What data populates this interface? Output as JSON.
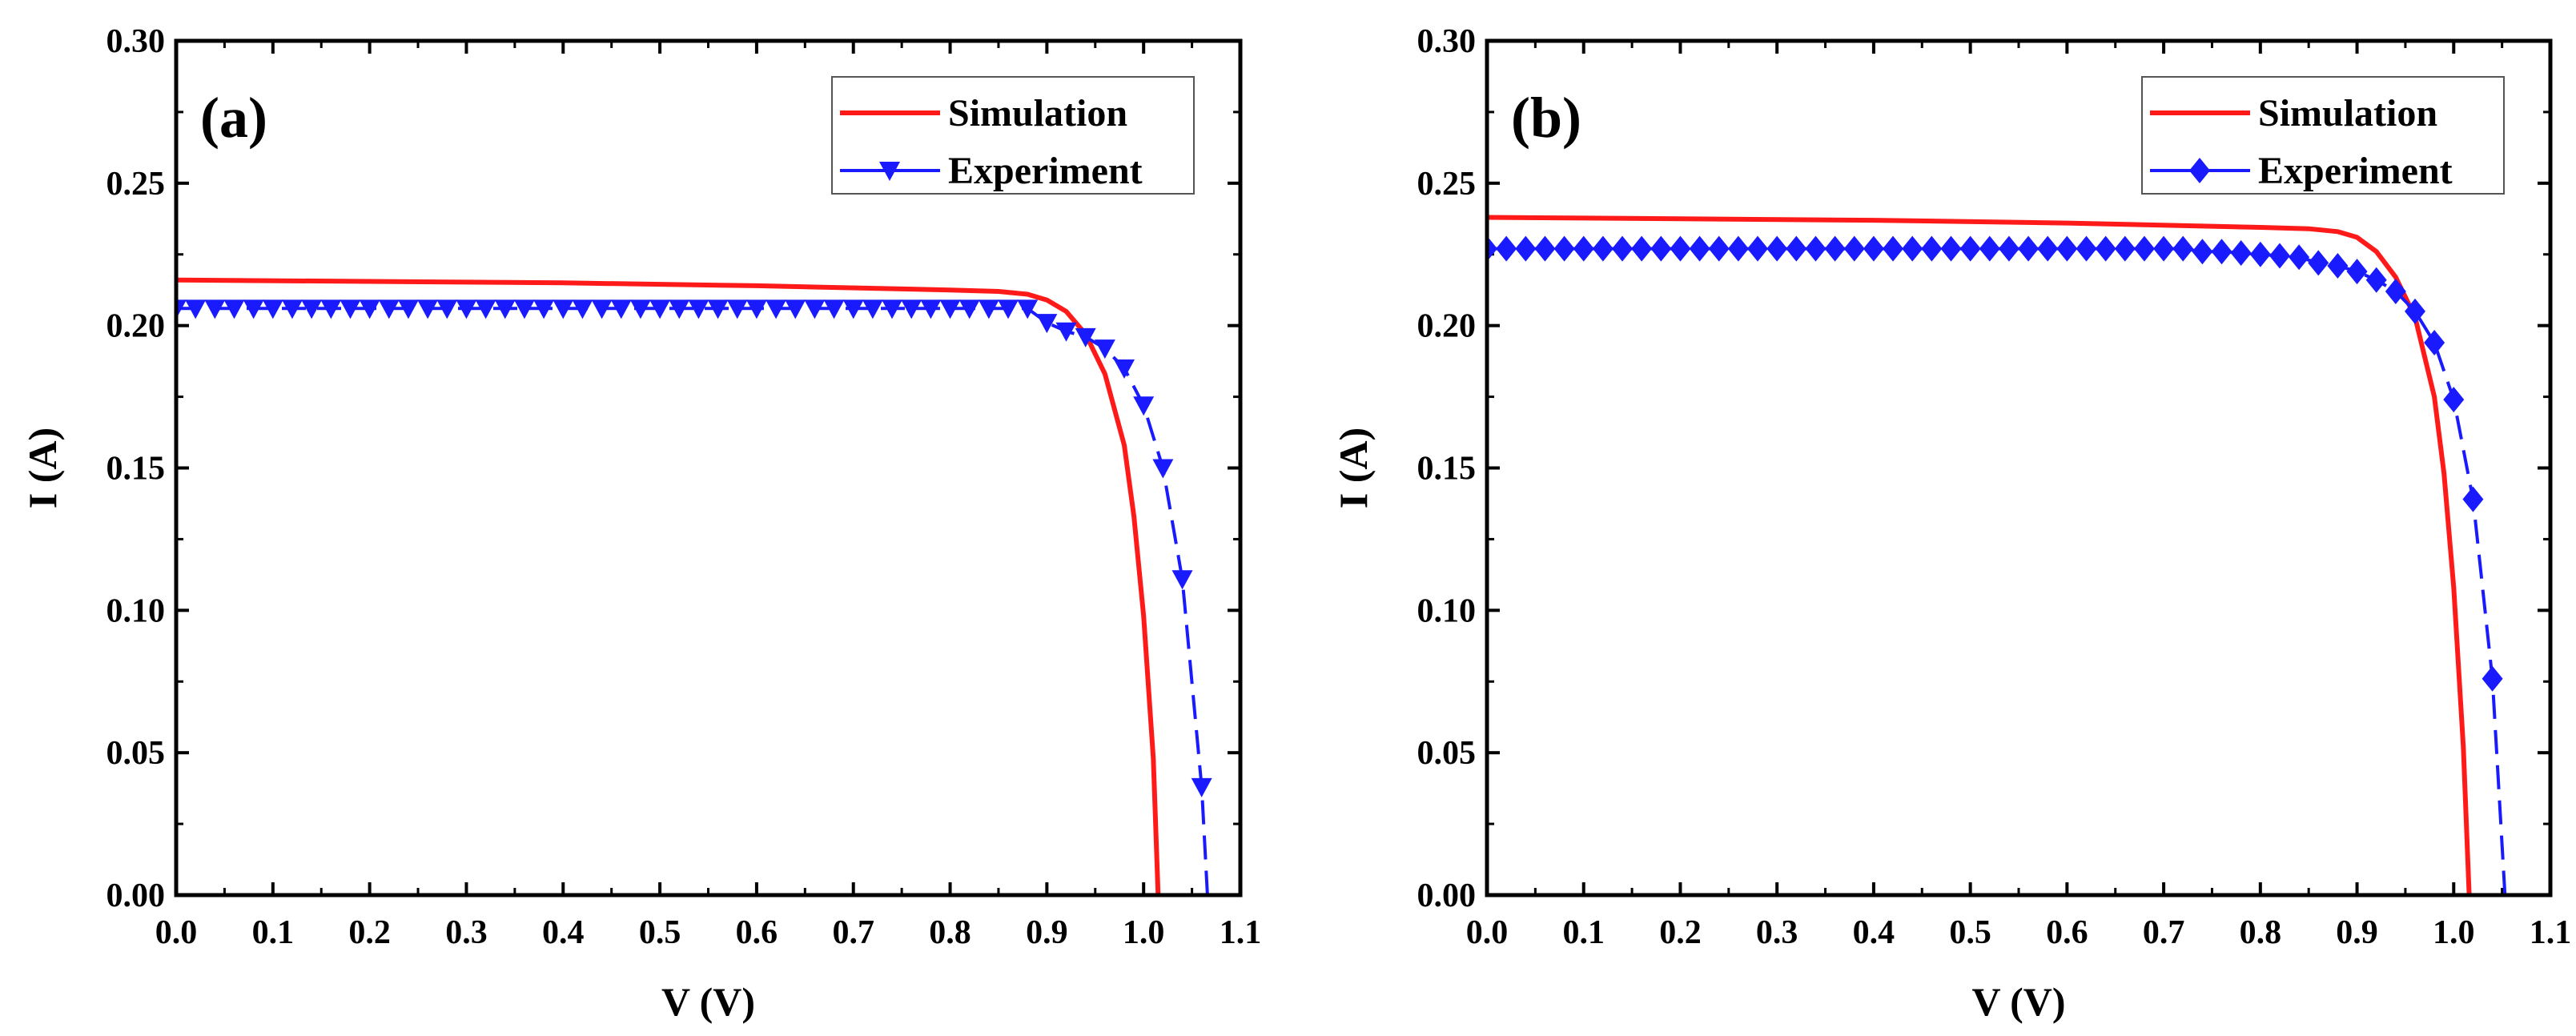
{
  "colors": {
    "simulation": "#ff1a1a",
    "experiment": "#1a1aff",
    "axis": "#000000"
  },
  "chart_data": [
    {
      "type": "line",
      "panel_label": "(a)",
      "xlabel": "V (V)",
      "ylabel": "I (A)",
      "xlim": [
        0,
        1.1
      ],
      "ylim": [
        0,
        0.3
      ],
      "xticks": [
        "0.0",
        "0.1",
        "0.2",
        "0.3",
        "0.4",
        "0.5",
        "0.6",
        "0.7",
        "0.8",
        "0.9",
        "1.0",
        "1.1"
      ],
      "yticks": [
        "0.00",
        "0.05",
        "0.10",
        "0.15",
        "0.20",
        "0.25",
        "0.30"
      ],
      "legend": {
        "placement": "top-right",
        "entries": [
          "Simulation",
          "Experiment"
        ]
      },
      "series": [
        {
          "name": "Simulation",
          "style": "solid",
          "marker": "none",
          "points": [
            [
              0,
              0.216
            ],
            [
              0.2,
              0.2155
            ],
            [
              0.4,
              0.215
            ],
            [
              0.6,
              0.214
            ],
            [
              0.8,
              0.2125
            ],
            [
              0.85,
              0.212
            ],
            [
              0.88,
              0.211
            ],
            [
              0.9,
              0.209
            ],
            [
              0.92,
              0.205
            ],
            [
              0.94,
              0.197
            ],
            [
              0.96,
              0.183
            ],
            [
              0.98,
              0.158
            ],
            [
              0.99,
              0.133
            ],
            [
              1.0,
              0.098
            ],
            [
              1.01,
              0.048
            ],
            [
              1.015,
              0
            ]
          ]
        },
        {
          "name": "Experiment",
          "style": "dashed",
          "marker": "triangle-down",
          "flat_value": 0.206,
          "flat_until": 0.88,
          "points": [
            [
              0.9,
              0.201
            ],
            [
              0.92,
              0.198
            ],
            [
              0.94,
              0.196
            ],
            [
              0.96,
              0.192
            ],
            [
              0.98,
              0.185
            ],
            [
              1.0,
              0.172
            ],
            [
              1.02,
              0.15
            ],
            [
              1.04,
              0.111
            ],
            [
              1.06,
              0.038
            ]
          ],
          "line_end": [
            1.066,
            0
          ]
        }
      ]
    },
    {
      "type": "line",
      "panel_label": "(b)",
      "xlabel": "V (V)",
      "ylabel": "I (A)",
      "xlim": [
        0,
        1.1
      ],
      "ylim": [
        0,
        0.3
      ],
      "xticks": [
        "0.0",
        "0.1",
        "0.2",
        "0.3",
        "0.4",
        "0.5",
        "0.6",
        "0.7",
        "0.8",
        "0.9",
        "1.0",
        "1.1"
      ],
      "yticks": [
        "0.00",
        "0.05",
        "0.10",
        "0.15",
        "0.20",
        "0.25",
        "0.30"
      ],
      "legend": {
        "placement": "top-right",
        "entries": [
          "Simulation",
          "Experiment"
        ]
      },
      "series": [
        {
          "name": "Simulation",
          "style": "solid",
          "marker": "none",
          "points": [
            [
              0,
              0.238
            ],
            [
              0.2,
              0.2375
            ],
            [
              0.4,
              0.237
            ],
            [
              0.6,
              0.236
            ],
            [
              0.8,
              0.2345
            ],
            [
              0.85,
              0.234
            ],
            [
              0.88,
              0.233
            ],
            [
              0.9,
              0.231
            ],
            [
              0.92,
              0.226
            ],
            [
              0.94,
              0.217
            ],
            [
              0.96,
              0.203
            ],
            [
              0.98,
              0.175
            ],
            [
              0.99,
              0.148
            ],
            [
              1.0,
              0.108
            ],
            [
              1.01,
              0.052
            ],
            [
              1.016,
              0
            ]
          ]
        },
        {
          "name": "Experiment",
          "style": "dashed",
          "marker": "diamond",
          "flat_value": 0.227,
          "flat_until": 0.72,
          "points": [
            [
              0.74,
              0.226
            ],
            [
              0.76,
              0.226
            ],
            [
              0.78,
              0.2255
            ],
            [
              0.8,
              0.225
            ],
            [
              0.82,
              0.2245
            ],
            [
              0.84,
              0.224
            ],
            [
              0.86,
              0.222
            ],
            [
              0.88,
              0.221
            ],
            [
              0.9,
              0.219
            ],
            [
              0.92,
              0.216
            ],
            [
              0.94,
              0.212
            ],
            [
              0.96,
              0.205
            ],
            [
              0.98,
              0.194
            ],
            [
              1.0,
              0.174
            ],
            [
              1.02,
              0.139
            ],
            [
              1.04,
              0.076
            ]
          ],
          "line_end": [
            1.053,
            0
          ]
        }
      ]
    }
  ]
}
